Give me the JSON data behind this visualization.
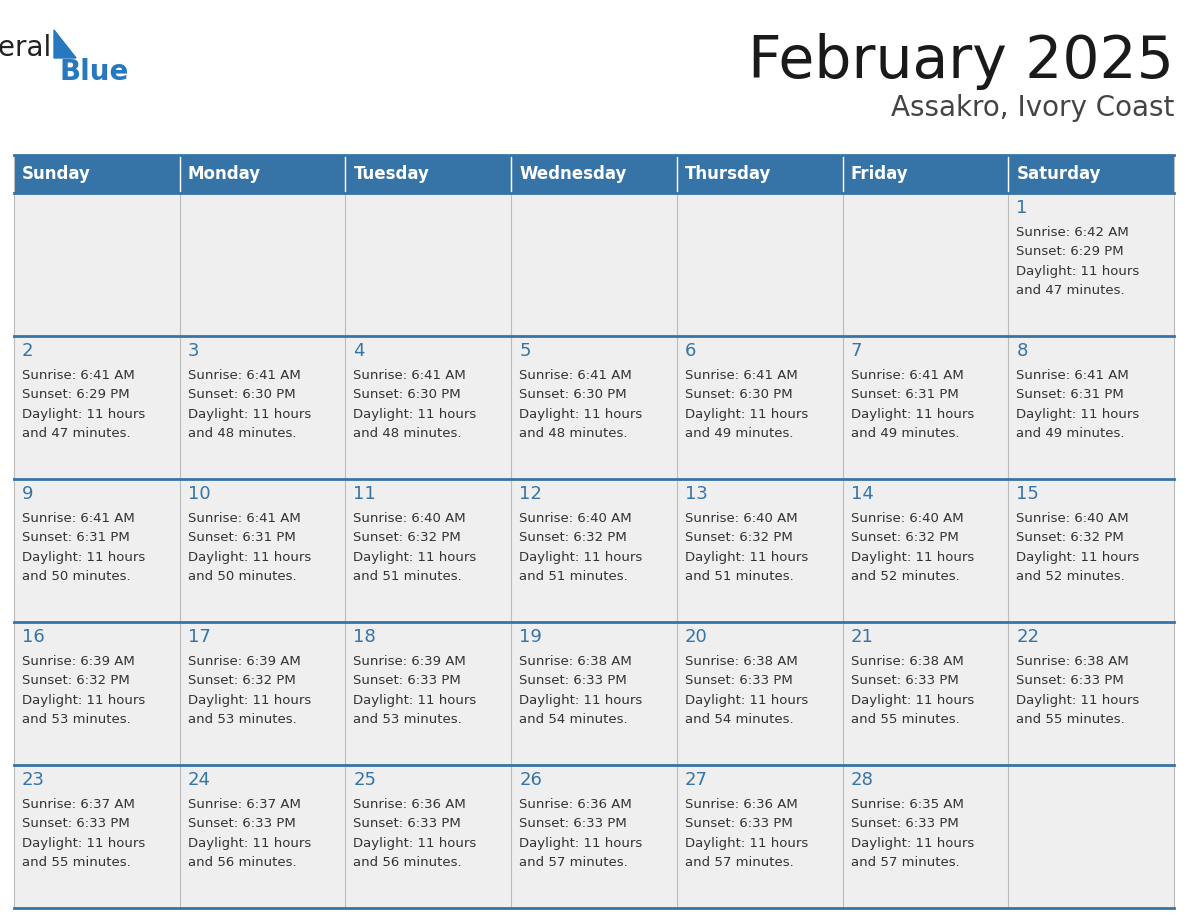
{
  "title": "February 2025",
  "subtitle": "Assakro, Ivory Coast",
  "header_bg": "#3674a8",
  "header_text_color": "#FFFFFF",
  "cell_bg": "#efefef",
  "border_color": "#3674a8",
  "inner_border_color": "#cccccc",
  "title_color": "#1a1a1a",
  "subtitle_color": "#444444",
  "day_num_color": "#3674a8",
  "cell_text_color": "#333333",
  "logo_general_color": "#222222",
  "logo_blue_color": "#2878bf",
  "day_headers": [
    "Sunday",
    "Monday",
    "Tuesday",
    "Wednesday",
    "Thursday",
    "Friday",
    "Saturday"
  ],
  "days": [
    {
      "day": 1,
      "col": 6,
      "row": 0,
      "sunrise": "6:42 AM",
      "sunset": "6:29 PM",
      "daylight_hours": 11,
      "daylight_minutes": 47
    },
    {
      "day": 2,
      "col": 0,
      "row": 1,
      "sunrise": "6:41 AM",
      "sunset": "6:29 PM",
      "daylight_hours": 11,
      "daylight_minutes": 47
    },
    {
      "day": 3,
      "col": 1,
      "row": 1,
      "sunrise": "6:41 AM",
      "sunset": "6:30 PM",
      "daylight_hours": 11,
      "daylight_minutes": 48
    },
    {
      "day": 4,
      "col": 2,
      "row": 1,
      "sunrise": "6:41 AM",
      "sunset": "6:30 PM",
      "daylight_hours": 11,
      "daylight_minutes": 48
    },
    {
      "day": 5,
      "col": 3,
      "row": 1,
      "sunrise": "6:41 AM",
      "sunset": "6:30 PM",
      "daylight_hours": 11,
      "daylight_minutes": 48
    },
    {
      "day": 6,
      "col": 4,
      "row": 1,
      "sunrise": "6:41 AM",
      "sunset": "6:30 PM",
      "daylight_hours": 11,
      "daylight_minutes": 49
    },
    {
      "day": 7,
      "col": 5,
      "row": 1,
      "sunrise": "6:41 AM",
      "sunset": "6:31 PM",
      "daylight_hours": 11,
      "daylight_minutes": 49
    },
    {
      "day": 8,
      "col": 6,
      "row": 1,
      "sunrise": "6:41 AM",
      "sunset": "6:31 PM",
      "daylight_hours": 11,
      "daylight_minutes": 49
    },
    {
      "day": 9,
      "col": 0,
      "row": 2,
      "sunrise": "6:41 AM",
      "sunset": "6:31 PM",
      "daylight_hours": 11,
      "daylight_minutes": 50
    },
    {
      "day": 10,
      "col": 1,
      "row": 2,
      "sunrise": "6:41 AM",
      "sunset": "6:31 PM",
      "daylight_hours": 11,
      "daylight_minutes": 50
    },
    {
      "day": 11,
      "col": 2,
      "row": 2,
      "sunrise": "6:40 AM",
      "sunset": "6:32 PM",
      "daylight_hours": 11,
      "daylight_minutes": 51
    },
    {
      "day": 12,
      "col": 3,
      "row": 2,
      "sunrise": "6:40 AM",
      "sunset": "6:32 PM",
      "daylight_hours": 11,
      "daylight_minutes": 51
    },
    {
      "day": 13,
      "col": 4,
      "row": 2,
      "sunrise": "6:40 AM",
      "sunset": "6:32 PM",
      "daylight_hours": 11,
      "daylight_minutes": 51
    },
    {
      "day": 14,
      "col": 5,
      "row": 2,
      "sunrise": "6:40 AM",
      "sunset": "6:32 PM",
      "daylight_hours": 11,
      "daylight_minutes": 52
    },
    {
      "day": 15,
      "col": 6,
      "row": 2,
      "sunrise": "6:40 AM",
      "sunset": "6:32 PM",
      "daylight_hours": 11,
      "daylight_minutes": 52
    },
    {
      "day": 16,
      "col": 0,
      "row": 3,
      "sunrise": "6:39 AM",
      "sunset": "6:32 PM",
      "daylight_hours": 11,
      "daylight_minutes": 53
    },
    {
      "day": 17,
      "col": 1,
      "row": 3,
      "sunrise": "6:39 AM",
      "sunset": "6:32 PM",
      "daylight_hours": 11,
      "daylight_minutes": 53
    },
    {
      "day": 18,
      "col": 2,
      "row": 3,
      "sunrise": "6:39 AM",
      "sunset": "6:33 PM",
      "daylight_hours": 11,
      "daylight_minutes": 53
    },
    {
      "day": 19,
      "col": 3,
      "row": 3,
      "sunrise": "6:38 AM",
      "sunset": "6:33 PM",
      "daylight_hours": 11,
      "daylight_minutes": 54
    },
    {
      "day": 20,
      "col": 4,
      "row": 3,
      "sunrise": "6:38 AM",
      "sunset": "6:33 PM",
      "daylight_hours": 11,
      "daylight_minutes": 54
    },
    {
      "day": 21,
      "col": 5,
      "row": 3,
      "sunrise": "6:38 AM",
      "sunset": "6:33 PM",
      "daylight_hours": 11,
      "daylight_minutes": 55
    },
    {
      "day": 22,
      "col": 6,
      "row": 3,
      "sunrise": "6:38 AM",
      "sunset": "6:33 PM",
      "daylight_hours": 11,
      "daylight_minutes": 55
    },
    {
      "day": 23,
      "col": 0,
      "row": 4,
      "sunrise": "6:37 AM",
      "sunset": "6:33 PM",
      "daylight_hours": 11,
      "daylight_minutes": 55
    },
    {
      "day": 24,
      "col": 1,
      "row": 4,
      "sunrise": "6:37 AM",
      "sunset": "6:33 PM",
      "daylight_hours": 11,
      "daylight_minutes": 56
    },
    {
      "day": 25,
      "col": 2,
      "row": 4,
      "sunrise": "6:36 AM",
      "sunset": "6:33 PM",
      "daylight_hours": 11,
      "daylight_minutes": 56
    },
    {
      "day": 26,
      "col": 3,
      "row": 4,
      "sunrise": "6:36 AM",
      "sunset": "6:33 PM",
      "daylight_hours": 11,
      "daylight_minutes": 57
    },
    {
      "day": 27,
      "col": 4,
      "row": 4,
      "sunrise": "6:36 AM",
      "sunset": "6:33 PM",
      "daylight_hours": 11,
      "daylight_minutes": 57
    },
    {
      "day": 28,
      "col": 5,
      "row": 4,
      "sunrise": "6:35 AM",
      "sunset": "6:33 PM",
      "daylight_hours": 11,
      "daylight_minutes": 57
    }
  ]
}
